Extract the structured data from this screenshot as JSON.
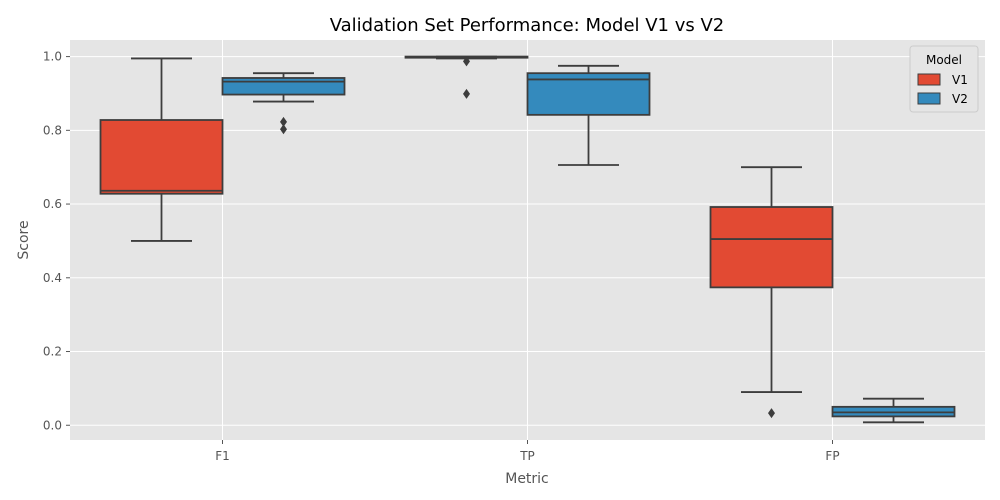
{
  "chart_data": {
    "type": "box",
    "title": "Validation Set Performance: Model V1 vs V2",
    "xlabel": "Metric",
    "ylabel": "Score",
    "categories": [
      "F1",
      "TP",
      "FP"
    ],
    "ylim": [
      -0.04,
      1.045
    ],
    "yticks": [
      "0.0",
      "0.2",
      "0.4",
      "0.6",
      "0.8",
      "1.0"
    ],
    "yticks_values": [
      0.0,
      0.2,
      0.4,
      0.6,
      0.8,
      1.0
    ],
    "grid": true,
    "legend": {
      "title": "Model",
      "placement": "top-right"
    },
    "series": [
      {
        "name": "V1",
        "color": "#E24A33",
        "boxes": [
          {
            "category": "F1",
            "whisker_low": 0.5,
            "q1": 0.628,
            "median": 0.636,
            "q3": 0.828,
            "whisker_high": 0.995,
            "outliers": []
          },
          {
            "category": "TP",
            "whisker_low": 0.995,
            "q1": 0.997,
            "median": 0.999,
            "q3": 1.0,
            "whisker_high": 1.0,
            "outliers": [
              0.987,
              0.899
            ]
          },
          {
            "category": "FP",
            "whisker_low": 0.09,
            "q1": 0.374,
            "median": 0.505,
            "q3": 0.592,
            "whisker_high": 0.7,
            "outliers": [
              0.033
            ]
          }
        ]
      },
      {
        "name": "V2",
        "color": "#348ABD",
        "boxes": [
          {
            "category": "F1",
            "whisker_low": 0.878,
            "q1": 0.897,
            "median": 0.932,
            "q3": 0.942,
            "whisker_high": 0.955,
            "outliers": [
              0.823,
              0.803
            ]
          },
          {
            "category": "TP",
            "whisker_low": 0.706,
            "q1": 0.842,
            "median": 0.938,
            "q3": 0.955,
            "whisker_high": 0.975,
            "outliers": []
          },
          {
            "category": "FP",
            "whisker_low": 0.008,
            "q1": 0.024,
            "median": 0.035,
            "q3": 0.05,
            "whisker_high": 0.072,
            "outliers": []
          }
        ]
      }
    ]
  }
}
